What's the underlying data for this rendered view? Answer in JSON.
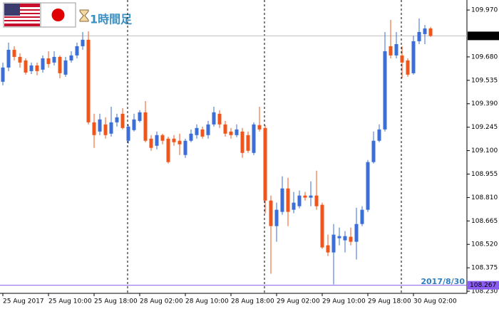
{
  "chart_data": {
    "type": "candlestick",
    "title": "1時間足",
    "categories": [
      "25 Aug 2017",
      null,
      null,
      null,
      null,
      null,
      null,
      null,
      "25 Aug 10:00",
      null,
      null,
      null,
      null,
      null,
      null,
      null,
      "25 Aug 18:00",
      null,
      null,
      null,
      null,
      null,
      null,
      null,
      "28 Aug 02:00",
      null,
      null,
      null,
      null,
      null,
      null,
      null,
      "28 Aug 10:00",
      null,
      null,
      null,
      null,
      null,
      null,
      null,
      "28 Aug 18:00",
      null,
      null,
      null,
      null,
      null,
      null,
      null,
      "29 Aug 02:00",
      null,
      null,
      null,
      null,
      null,
      null,
      null,
      "29 Aug 10:00",
      null,
      null,
      null,
      null,
      null,
      null,
      null,
      "29 Aug 18:00",
      null,
      null,
      null,
      null,
      null,
      null,
      null,
      "30 Aug 02:00",
      null,
      null,
      null
    ],
    "open": [
      109.526,
      109.614,
      109.724,
      109.68,
      109.658,
      109.592,
      109.627,
      109.601,
      109.671,
      109.645,
      109.68,
      109.57,
      109.658,
      109.689,
      109.746,
      109.786,
      109.275,
      109.218,
      109.262,
      109.205,
      109.275,
      109.328,
      109.161,
      109.227,
      109.284,
      109.337,
      109.174,
      109.13,
      109.196,
      109.174,
      109.174,
      109.161,
      109.073,
      109.161,
      109.196,
      109.231,
      109.196,
      109.262,
      109.328,
      109.262,
      109.218,
      109.196,
      109.218,
      109.196,
      109.086,
      109.258,
      109.24,
      108.791,
      108.633,
      108.721,
      108.866,
      108.734,
      108.756,
      108.822,
      108.809,
      108.822,
      108.765,
      108.514,
      108.47,
      108.558,
      108.545,
      108.567,
      108.536,
      108.646,
      108.734,
      109.029,
      109.161,
      109.231,
      109.746,
      109.689,
      109.689,
      109.658,
      109.579,
      109.777,
      109.821,
      109.856
    ],
    "high": [
      109.645,
      109.768,
      109.746,
      109.702,
      109.671,
      109.645,
      109.645,
      109.689,
      109.715,
      109.715,
      109.689,
      109.68,
      109.715,
      109.768,
      109.834,
      109.838,
      109.328,
      109.328,
      109.306,
      109.372,
      109.328,
      109.363,
      109.262,
      109.328,
      109.35,
      109.407,
      109.196,
      109.218,
      109.205,
      109.187,
      109.196,
      109.205,
      109.174,
      109.231,
      109.262,
      109.249,
      109.284,
      109.372,
      109.35,
      109.284,
      109.24,
      109.262,
      109.24,
      109.218,
      109.275,
      109.372,
      109.258,
      108.822,
      108.778,
      108.941,
      108.932,
      108.844,
      108.853,
      108.844,
      108.91,
      108.976,
      108.778,
      108.58,
      108.646,
      108.624,
      108.602,
      108.624,
      108.747,
      108.756,
      109.042,
      109.218,
      109.262,
      109.834,
      109.909,
      109.834,
      109.746,
      109.671,
      109.812,
      109.918,
      109.878,
      109.865
    ],
    "low": [
      109.504,
      109.592,
      109.658,
      109.614,
      109.57,
      109.574,
      109.566,
      109.583,
      109.614,
      109.627,
      109.548,
      109.557,
      109.645,
      109.671,
      109.724,
      109.262,
      109.117,
      109.196,
      109.174,
      109.187,
      109.249,
      109.231,
      109.143,
      109.218,
      109.275,
      109.152,
      109.099,
      109.108,
      109.139,
      109.02,
      109.13,
      109.073,
      109.055,
      109.152,
      109.174,
      109.174,
      109.174,
      109.249,
      109.24,
      109.187,
      109.174,
      109.183,
      109.055,
      109.086,
      109.073,
      109.218,
      108.712,
      108.338,
      108.536,
      108.703,
      108.633,
      108.712,
      108.743,
      108.791,
      108.756,
      108.734,
      108.492,
      108.448,
      108.272,
      108.514,
      108.47,
      108.514,
      108.426,
      108.633,
      108.721,
      109.02,
      109.152,
      109.218,
      109.671,
      109.671,
      109.548,
      109.557,
      109.57,
      109.759,
      109.759,
      109.803
    ],
    "close": [
      109.614,
      109.724,
      109.68,
      109.645,
      109.583,
      109.627,
      109.592,
      109.671,
      109.636,
      109.68,
      109.579,
      109.658,
      109.689,
      109.746,
      109.786,
      109.275,
      109.196,
      109.293,
      109.196,
      109.275,
      109.306,
      109.24,
      109.249,
      109.293,
      109.337,
      109.161,
      109.117,
      109.196,
      109.161,
      109.029,
      109.152,
      109.139,
      109.161,
      109.205,
      109.24,
      109.187,
      109.262,
      109.337,
      109.262,
      109.205,
      109.196,
      109.231,
      109.086,
      109.099,
      109.262,
      109.231,
      108.791,
      108.633,
      108.734,
      108.866,
      108.721,
      108.778,
      108.822,
      108.809,
      108.822,
      108.756,
      108.501,
      108.47,
      108.58,
      108.571,
      108.571,
      108.536,
      108.646,
      108.734,
      109.029,
      109.161,
      109.231,
      109.715,
      109.689,
      109.759,
      109.645,
      109.57,
      109.777,
      109.834,
      109.856,
      109.81
    ],
    "up_color": "#3b6ed6",
    "down_color": "#f0561c",
    "ylim": [
      108.217,
      110.032
    ],
    "yticks": [
      {
        "value": 109.97,
        "label": "109.970"
      },
      {
        "value": 109.68,
        "label": "109.680"
      },
      109.535,
      {
        "value": 109.39,
        "label": "109.390"
      },
      109.245,
      {
        "value": 109.1,
        "label": "109.100"
      },
      108.955,
      {
        "value": 108.81,
        "label": "108.810"
      },
      108.665,
      {
        "value": 108.52,
        "label": "108.520"
      },
      108.375,
      {
        "value": 108.23,
        "label": "108.230"
      }
    ],
    "current_price": {
      "value": 109.81,
      "label": "109.810"
    },
    "marker_line": {
      "value": 108.267,
      "color": "#8a5cf0"
    },
    "date_label": "2017/8/30"
  }
}
